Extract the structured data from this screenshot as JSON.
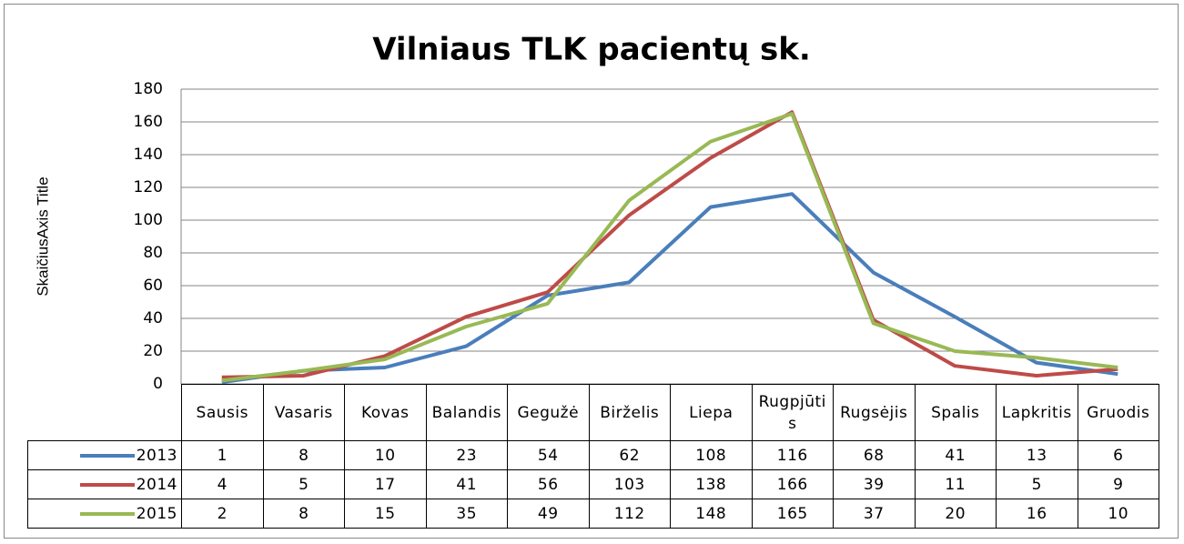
{
  "chart_data": {
    "type": "line",
    "title": "Vilniaus TLK pacientų sk.",
    "y_label": "SkaičiusAxis Title",
    "categories": [
      "Sausis",
      "Vasaris",
      "Kovas",
      "Balandis",
      "Gegužė",
      "Birželis",
      "Liepa",
      "Rugpjūtis",
      "Rugsėjis",
      "Spalis",
      "Lapkritis",
      "Gruodis"
    ],
    "series": [
      {
        "name": "2013",
        "color": "#4a7ebb",
        "values": [
          1,
          8,
          10,
          23,
          54,
          62,
          108,
          116,
          68,
          41,
          13,
          6
        ]
      },
      {
        "name": "2014",
        "color": "#be4b48",
        "values": [
          4,
          5,
          17,
          41,
          56,
          103,
          138,
          166,
          39,
          11,
          5,
          9
        ]
      },
      {
        "name": "2015",
        "color": "#98b954",
        "values": [
          2,
          8,
          15,
          35,
          49,
          112,
          148,
          165,
          37,
          20,
          16,
          10
        ]
      }
    ],
    "ylim": [
      0,
      180
    ],
    "yticks": [
      0,
      20,
      40,
      60,
      80,
      100,
      120,
      140,
      160,
      180
    ],
    "grid": true,
    "data_table": true
  }
}
